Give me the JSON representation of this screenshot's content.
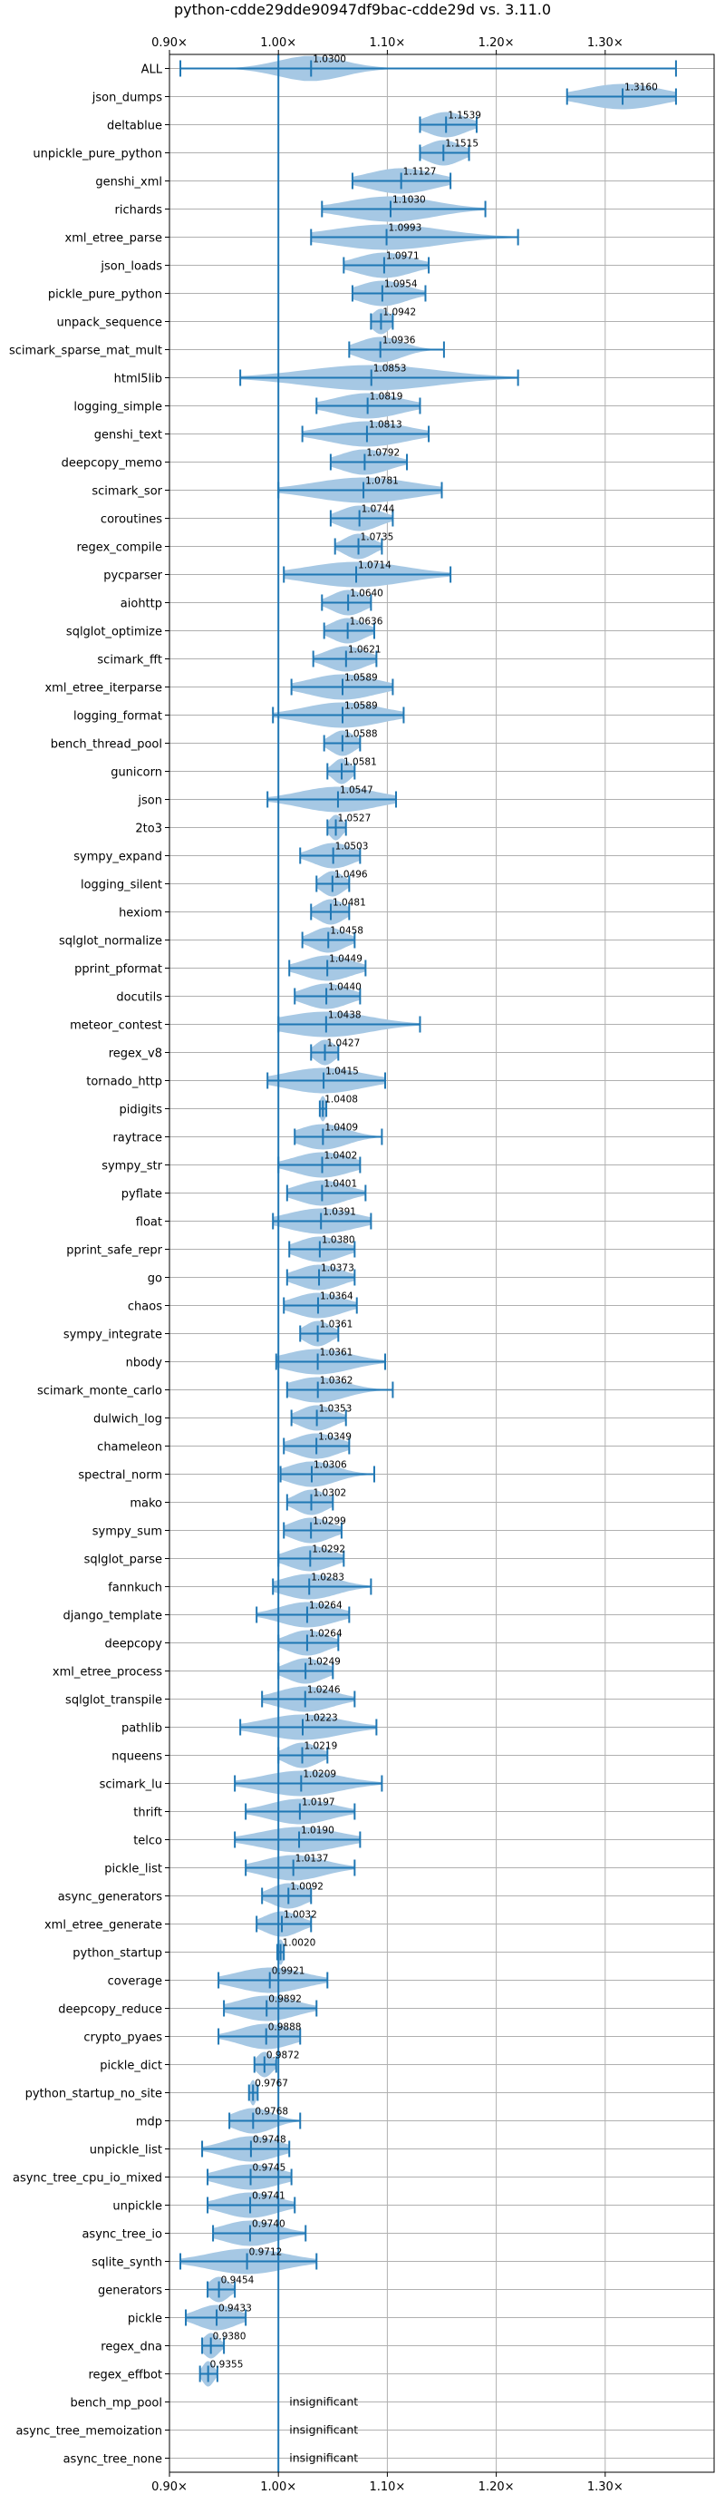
{
  "chart_data": {
    "type": "violin",
    "title": "python-cdde29dde90947df9bac-cdde29d vs. 3.11.0",
    "xlim": [
      0.9,
      1.4
    ],
    "xticks": [
      0.9,
      1.0,
      1.1,
      1.2,
      1.3
    ],
    "xtick_labels": [
      "0.90×",
      "1.00×",
      "1.10×",
      "1.20×",
      "1.30×"
    ],
    "reference_line": 1.0,
    "grid": true,
    "colors": {
      "violin": "#a6c8e4",
      "line": "#1f77b4",
      "grid": "#b0b0b0"
    },
    "benchmarks": [
      {
        "name": "ALL",
        "label": "1.0300",
        "mean": 1.03,
        "min": 0.91,
        "max": 1.365,
        "spread": 0.03
      },
      {
        "name": "json_dumps",
        "label": "1.3160",
        "mean": 1.316,
        "min": 1.265,
        "max": 1.365,
        "spread": 0.035
      },
      {
        "name": "deltablue",
        "label": "1.1539",
        "mean": 1.1539,
        "min": 1.13,
        "max": 1.182,
        "spread": 0.018
      },
      {
        "name": "unpickle_pure_python",
        "label": "1.1515",
        "mean": 1.1515,
        "min": 1.13,
        "max": 1.175,
        "spread": 0.016
      },
      {
        "name": "genshi_xml",
        "label": "1.1127",
        "mean": 1.1127,
        "min": 1.068,
        "max": 1.158,
        "spread": 0.03
      },
      {
        "name": "richards",
        "label": "1.1030",
        "mean": 1.103,
        "min": 1.04,
        "max": 1.19,
        "spread": 0.04
      },
      {
        "name": "xml_etree_parse",
        "label": "1.0993",
        "mean": 1.0993,
        "min": 1.03,
        "max": 1.22,
        "spread": 0.05
      },
      {
        "name": "json_loads",
        "label": "1.0971",
        "mean": 1.0971,
        "min": 1.06,
        "max": 1.138,
        "spread": 0.025
      },
      {
        "name": "pickle_pure_python",
        "label": "1.0954",
        "mean": 1.0954,
        "min": 1.068,
        "max": 1.135,
        "spread": 0.022
      },
      {
        "name": "unpack_sequence",
        "label": "1.0942",
        "mean": 1.0942,
        "min": 1.085,
        "max": 1.105,
        "spread": 0.008
      },
      {
        "name": "scimark_sparse_mat_mult",
        "label": "1.0936",
        "mean": 1.0936,
        "min": 1.065,
        "max": 1.152,
        "spread": 0.02
      },
      {
        "name": "html5lib",
        "label": "1.0853",
        "mean": 1.0853,
        "min": 0.965,
        "max": 1.22,
        "spread": 0.06
      },
      {
        "name": "logging_simple",
        "label": "1.0819",
        "mean": 1.0819,
        "min": 1.035,
        "max": 1.13,
        "spread": 0.03
      },
      {
        "name": "genshi_text",
        "label": "1.0813",
        "mean": 1.0813,
        "min": 1.022,
        "max": 1.138,
        "spread": 0.035
      },
      {
        "name": "deepcopy_memo",
        "label": "1.0792",
        "mean": 1.0792,
        "min": 1.048,
        "max": 1.118,
        "spread": 0.022
      },
      {
        "name": "scimark_sor",
        "label": "1.0781",
        "mean": 1.0781,
        "min": 1.0,
        "max": 1.15,
        "spread": 0.045
      },
      {
        "name": "coroutines",
        "label": "1.0744",
        "mean": 1.0744,
        "min": 1.048,
        "max": 1.105,
        "spread": 0.018
      },
      {
        "name": "regex_compile",
        "label": "1.0735",
        "mean": 1.0735,
        "min": 1.052,
        "max": 1.095,
        "spread": 0.013
      },
      {
        "name": "pycparser",
        "label": "1.0714",
        "mean": 1.0714,
        "min": 1.005,
        "max": 1.158,
        "spread": 0.045
      },
      {
        "name": "aiohttp",
        "label": "1.0640",
        "mean": 1.064,
        "min": 1.04,
        "max": 1.085,
        "spread": 0.015
      },
      {
        "name": "sqlglot_optimize",
        "label": "1.0636",
        "mean": 1.0636,
        "min": 1.042,
        "max": 1.088,
        "spread": 0.015
      },
      {
        "name": "scimark_fft",
        "label": "1.0621",
        "mean": 1.0621,
        "min": 1.032,
        "max": 1.09,
        "spread": 0.018
      },
      {
        "name": "xml_etree_iterparse",
        "label": "1.0589",
        "mean": 1.0589,
        "min": 1.012,
        "max": 1.105,
        "spread": 0.03
      },
      {
        "name": "logging_format",
        "label": "1.0589",
        "mean": 1.0589,
        "min": 0.995,
        "max": 1.115,
        "spread": 0.035
      },
      {
        "name": "bench_thread_pool",
        "label": "1.0588",
        "mean": 1.0588,
        "min": 1.042,
        "max": 1.075,
        "spread": 0.011
      },
      {
        "name": "gunicorn",
        "label": "1.0581",
        "mean": 1.0581,
        "min": 1.045,
        "max": 1.07,
        "spread": 0.008
      },
      {
        "name": "json",
        "label": "1.0547",
        "mean": 1.0547,
        "min": 0.99,
        "max": 1.108,
        "spread": 0.035
      },
      {
        "name": "2to3",
        "label": "1.0527",
        "mean": 1.0527,
        "min": 1.045,
        "max": 1.062,
        "spread": 0.006
      },
      {
        "name": "sympy_expand",
        "label": "1.0503",
        "mean": 1.0503,
        "min": 1.02,
        "max": 1.075,
        "spread": 0.018
      },
      {
        "name": "logging_silent",
        "label": "1.0496",
        "mean": 1.0496,
        "min": 1.035,
        "max": 1.065,
        "spread": 0.01
      },
      {
        "name": "hexiom",
        "label": "1.0481",
        "mean": 1.0481,
        "min": 1.03,
        "max": 1.065,
        "spread": 0.012
      },
      {
        "name": "sqlglot_normalize",
        "label": "1.0458",
        "mean": 1.0458,
        "min": 1.022,
        "max": 1.07,
        "spread": 0.015
      },
      {
        "name": "pprint_pformat",
        "label": "1.0449",
        "mean": 1.0449,
        "min": 1.01,
        "max": 1.08,
        "spread": 0.022
      },
      {
        "name": "docutils",
        "label": "1.0440",
        "mean": 1.044,
        "min": 1.015,
        "max": 1.075,
        "spread": 0.02
      },
      {
        "name": "meteor_contest",
        "label": "1.0438",
        "mean": 1.0438,
        "min": 1.0,
        "max": 1.13,
        "spread": 0.04
      },
      {
        "name": "regex_v8",
        "label": "1.0427",
        "mean": 1.0427,
        "min": 1.03,
        "max": 1.055,
        "spread": 0.009
      },
      {
        "name": "tornado_http",
        "label": "1.0415",
        "mean": 1.0415,
        "min": 0.99,
        "max": 1.098,
        "spread": 0.035
      },
      {
        "name": "pidigits",
        "label": "1.0408",
        "mean": 1.0408,
        "min": 1.038,
        "max": 1.044,
        "spread": 0.003
      },
      {
        "name": "raytrace",
        "label": "1.0409",
        "mean": 1.0409,
        "min": 1.015,
        "max": 1.095,
        "spread": 0.022
      },
      {
        "name": "sympy_str",
        "label": "1.0402",
        "mean": 1.0402,
        "min": 1.0,
        "max": 1.075,
        "spread": 0.025
      },
      {
        "name": "pyflate",
        "label": "1.0401",
        "mean": 1.0401,
        "min": 1.008,
        "max": 1.08,
        "spread": 0.022
      },
      {
        "name": "float",
        "label": "1.0391",
        "mean": 1.0391,
        "min": 0.995,
        "max": 1.085,
        "spread": 0.03
      },
      {
        "name": "pprint_safe_repr",
        "label": "1.0380",
        "mean": 1.038,
        "min": 1.01,
        "max": 1.07,
        "spread": 0.02
      },
      {
        "name": "go",
        "label": "1.0373",
        "mean": 1.0373,
        "min": 1.008,
        "max": 1.07,
        "spread": 0.02
      },
      {
        "name": "chaos",
        "label": "1.0364",
        "mean": 1.0364,
        "min": 1.005,
        "max": 1.072,
        "spread": 0.022
      },
      {
        "name": "sympy_integrate",
        "label": "1.0361",
        "mean": 1.0361,
        "min": 1.02,
        "max": 1.055,
        "spread": 0.012
      },
      {
        "name": "nbody",
        "label": "1.0361",
        "mean": 1.0361,
        "min": 0.998,
        "max": 1.098,
        "spread": 0.03
      },
      {
        "name": "scimark_monte_carlo",
        "label": "1.0362",
        "mean": 1.0362,
        "min": 1.008,
        "max": 1.105,
        "spread": 0.025
      },
      {
        "name": "dulwich_log",
        "label": "1.0353",
        "mean": 1.0353,
        "min": 1.012,
        "max": 1.062,
        "spread": 0.016
      },
      {
        "name": "chameleon",
        "label": "1.0349",
        "mean": 1.0349,
        "min": 1.005,
        "max": 1.065,
        "spread": 0.02
      },
      {
        "name": "spectral_norm",
        "label": "1.0306",
        "mean": 1.0306,
        "min": 1.002,
        "max": 1.088,
        "spread": 0.022
      },
      {
        "name": "mako",
        "label": "1.0302",
        "mean": 1.0302,
        "min": 1.008,
        "max": 1.05,
        "spread": 0.014
      },
      {
        "name": "sympy_sum",
        "label": "1.0299",
        "mean": 1.0299,
        "min": 1.005,
        "max": 1.058,
        "spread": 0.018
      },
      {
        "name": "sqlglot_parse",
        "label": "1.0292",
        "mean": 1.0292,
        "min": 1.0,
        "max": 1.06,
        "spread": 0.02
      },
      {
        "name": "fannkuch",
        "label": "1.0283",
        "mean": 1.0283,
        "min": 0.995,
        "max": 1.085,
        "spread": 0.025
      },
      {
        "name": "django_template",
        "label": "1.0264",
        "mean": 1.0264,
        "min": 0.98,
        "max": 1.065,
        "spread": 0.025
      },
      {
        "name": "deepcopy",
        "label": "1.0264",
        "mean": 1.0264,
        "min": 1.0,
        "max": 1.055,
        "spread": 0.018
      },
      {
        "name": "xml_etree_process",
        "label": "1.0249",
        "mean": 1.0249,
        "min": 1.0,
        "max": 1.05,
        "spread": 0.017
      },
      {
        "name": "sqlglot_transpile",
        "label": "1.0246",
        "mean": 1.0246,
        "min": 0.985,
        "max": 1.07,
        "spread": 0.025
      },
      {
        "name": "pathlib",
        "label": "1.0223",
        "mean": 1.0223,
        "min": 0.965,
        "max": 1.09,
        "spread": 0.035
      },
      {
        "name": "nqueens",
        "label": "1.0219",
        "mean": 1.0219,
        "min": 1.0,
        "max": 1.045,
        "spread": 0.015
      },
      {
        "name": "scimark_lu",
        "label": "1.0209",
        "mean": 1.0209,
        "min": 0.96,
        "max": 1.095,
        "spread": 0.035
      },
      {
        "name": "thrift",
        "label": "1.0197",
        "mean": 1.0197,
        "min": 0.97,
        "max": 1.07,
        "spread": 0.028
      },
      {
        "name": "telco",
        "label": "1.0190",
        "mean": 1.019,
        "min": 0.96,
        "max": 1.075,
        "spread": 0.035
      },
      {
        "name": "pickle_list",
        "label": "1.0137",
        "mean": 1.0137,
        "min": 0.97,
        "max": 1.07,
        "spread": 0.028
      },
      {
        "name": "async_generators",
        "label": "1.0092",
        "mean": 1.0092,
        "min": 0.985,
        "max": 1.03,
        "spread": 0.016
      },
      {
        "name": "xml_etree_generate",
        "label": "1.0032",
        "mean": 1.0032,
        "min": 0.98,
        "max": 1.03,
        "spread": 0.016
      },
      {
        "name": "python_startup",
        "label": "1.0020",
        "mean": 1.002,
        "min": 0.999,
        "max": 1.005,
        "spread": 0.003
      },
      {
        "name": "coverage",
        "label": "0.9921",
        "mean": 0.9921,
        "min": 0.945,
        "max": 1.045,
        "spread": 0.03
      },
      {
        "name": "deepcopy_reduce",
        "label": "0.9892",
        "mean": 0.9892,
        "min": 0.95,
        "max": 1.035,
        "spread": 0.026
      },
      {
        "name": "crypto_pyaes",
        "label": "0.9888",
        "mean": 0.9888,
        "min": 0.945,
        "max": 1.02,
        "spread": 0.024
      },
      {
        "name": "pickle_dict",
        "label": "0.9872",
        "mean": 0.9872,
        "min": 0.978,
        "max": 0.998,
        "spread": 0.007
      },
      {
        "name": "python_startup_no_site",
        "label": "0.9767",
        "mean": 0.9767,
        "min": 0.973,
        "max": 0.981,
        "spread": 0.003
      },
      {
        "name": "mdp",
        "label": "0.9768",
        "mean": 0.9768,
        "min": 0.955,
        "max": 1.02,
        "spread": 0.018
      },
      {
        "name": "unpickle_list",
        "label": "0.9748",
        "mean": 0.9748,
        "min": 0.93,
        "max": 1.01,
        "spread": 0.024
      },
      {
        "name": "async_tree_cpu_io_mixed",
        "label": "0.9745",
        "mean": 0.9745,
        "min": 0.935,
        "max": 1.012,
        "spread": 0.026
      },
      {
        "name": "unpickle",
        "label": "0.9741",
        "mean": 0.9741,
        "min": 0.935,
        "max": 1.015,
        "spread": 0.025
      },
      {
        "name": "async_tree_io",
        "label": "0.9740",
        "mean": 0.974,
        "min": 0.94,
        "max": 1.025,
        "spread": 0.025
      },
      {
        "name": "sqlite_synth",
        "label": "0.9712",
        "mean": 0.9712,
        "min": 0.91,
        "max": 1.035,
        "spread": 0.035
      },
      {
        "name": "generators",
        "label": "0.9454",
        "mean": 0.9454,
        "min": 0.935,
        "max": 0.96,
        "spread": 0.009
      },
      {
        "name": "pickle",
        "label": "0.9433",
        "mean": 0.9433,
        "min": 0.915,
        "max": 0.97,
        "spread": 0.018
      },
      {
        "name": "regex_dna",
        "label": "0.9380",
        "mean": 0.938,
        "min": 0.93,
        "max": 0.95,
        "spread": 0.007
      },
      {
        "name": "regex_effbot",
        "label": "0.9355",
        "mean": 0.9355,
        "min": 0.928,
        "max": 0.944,
        "spread": 0.005
      },
      {
        "name": "bench_mp_pool",
        "label": "insignificant",
        "insignificant": true
      },
      {
        "name": "async_tree_memoization",
        "label": "insignificant",
        "insignificant": true
      },
      {
        "name": "async_tree_none",
        "label": "insignificant",
        "insignificant": true
      }
    ]
  }
}
